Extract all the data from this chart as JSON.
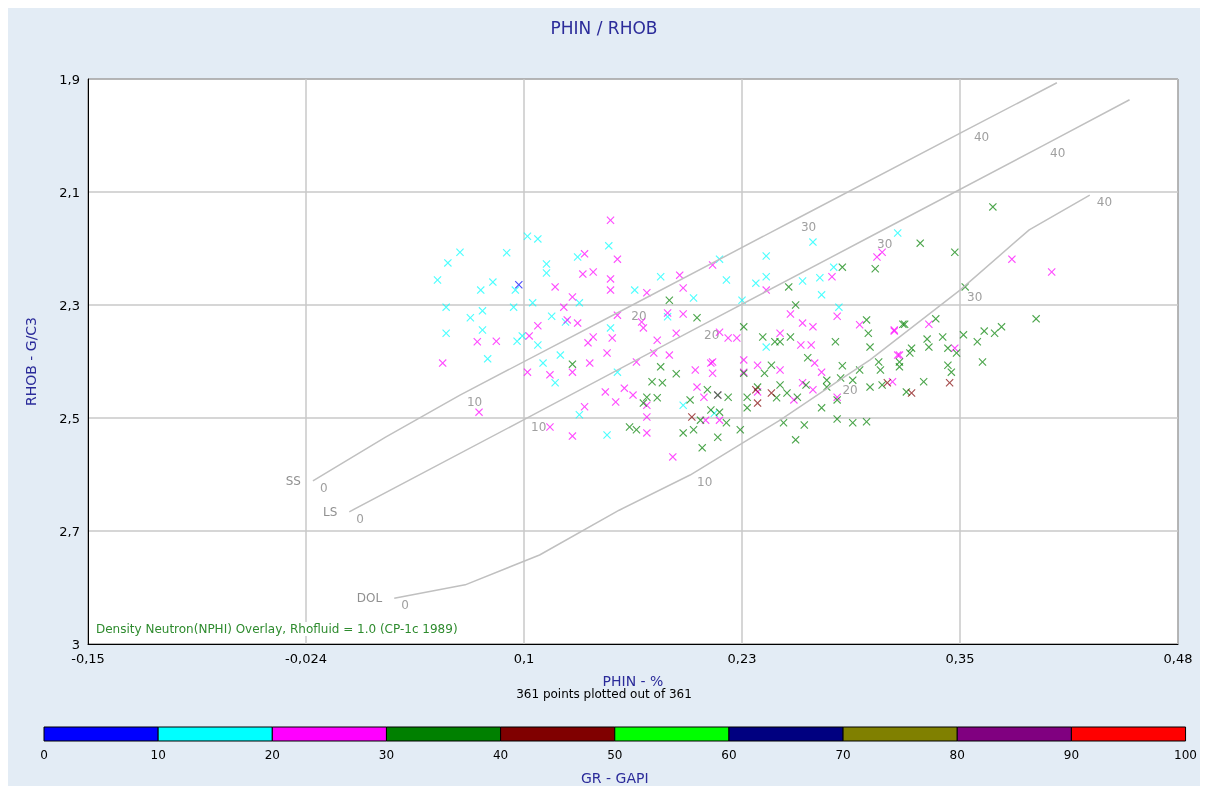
{
  "chart_data": {
    "type": "scatter",
    "title": "PHIN / RHOB",
    "xlabel": "PHIN - %",
    "ylabel": "RHOB - G/C3",
    "clabel": "GR - GAPI",
    "xlim": [
      -0.15,
      0.48
    ],
    "xticks": [
      {
        "value": -0.15,
        "label": "-0,15"
      },
      {
        "value": -0.024,
        "label": "-0,024"
      },
      {
        "value": 0.102,
        "label": "0,1"
      },
      {
        "value": 0.228,
        "label": "0,23"
      },
      {
        "value": 0.354,
        "label": "0,35"
      },
      {
        "value": 0.48,
        "label": "0,48"
      }
    ],
    "ylim": [
      2.96,
      1.9
    ],
    "yticks": [
      {
        "value": 1.9,
        "label": "1,9"
      },
      {
        "value": 2.112,
        "label": "2,1"
      },
      {
        "value": 2.324,
        "label": "2,3"
      },
      {
        "value": 2.536,
        "label": "2,5"
      },
      {
        "value": 2.748,
        "label": "2,7"
      },
      {
        "value": 2.96,
        "label": "3"
      }
    ],
    "grid": true,
    "marker": "cross",
    "clim": [
      0,
      100
    ],
    "cticks": [
      0,
      10,
      20,
      30,
      40,
      50,
      60,
      70,
      80,
      90,
      100
    ],
    "colors": [
      "#0000ff",
      "#00ffff",
      "#ff00ff",
      "#008000",
      "#800000",
      "#00ff00",
      "#000080",
      "#808000",
      "#800080",
      "#ff0000"
    ],
    "series": [
      {
        "x": [
          0.104,
          0.11,
          0.065,
          0.058,
          0.092,
          0.052,
          0.084,
          0.077,
          0.097,
          0.057,
          0.078,
          0.096,
          0.071,
          0.107,
          0.057,
          0.078,
          0.098,
          0.101,
          0.11,
          0.118,
          0.081,
          0.113,
          0.123,
          0.12,
          0.115,
          0.115,
          0.133,
          0.134,
          0.126,
          0.151,
          0.166,
          0.152,
          0.156,
          0.134,
          0.15,
          0.181,
          0.215,
          0.242,
          0.269,
          0.318,
          0.281,
          0.274,
          0.242,
          0.236,
          0.219,
          0.228,
          0.2,
          0.242,
          0.284,
          0.185,
          0.194,
          0.212,
          0.263,
          0.273
        ],
        "values": [
          2.195,
          2.2,
          2.225,
          2.245,
          2.226,
          2.277,
          2.281,
          2.296,
          2.296,
          2.328,
          2.335,
          2.328,
          2.348,
          2.32,
          2.377,
          2.371,
          2.392,
          2.382,
          2.399,
          2.345,
          2.425,
          2.433,
          2.418,
          2.47,
          2.247,
          2.264,
          2.234,
          2.32,
          2.356,
          2.213,
          2.296,
          2.367,
          2.45,
          2.53,
          2.568,
          2.271,
          2.238,
          2.232,
          2.206,
          2.189,
          2.253,
          2.305,
          2.271,
          2.283,
          2.277,
          2.315,
          2.311,
          2.403,
          2.328,
          2.346,
          2.512,
          2.527,
          2.279,
          2.273
        ],
        "cvalues": [
          15,
          15,
          15,
          15,
          15,
          15,
          15,
          15,
          15,
          15,
          15,
          15,
          15,
          15,
          15,
          15,
          15,
          15,
          15,
          15,
          15,
          15,
          15,
          15,
          15,
          15,
          15,
          15,
          15,
          15,
          15,
          15,
          15,
          15,
          15,
          15,
          15,
          15,
          15,
          15,
          15,
          15,
          15,
          15,
          15,
          15,
          15,
          15,
          15,
          15,
          15,
          15,
          15,
          15
        ]
      },
      {
        "x": [
          0.152,
          0.137,
          0.156,
          0.142,
          0.136,
          0.152,
          0.12,
          0.152,
          0.13,
          0.125,
          0.127,
          0.133,
          0.11,
          0.105,
          0.075,
          0.086,
          0.055,
          0.104,
          0.117,
          0.13,
          0.14,
          0.142,
          0.139,
          0.15,
          0.153,
          0.156,
          0.17,
          0.171,
          0.167,
          0.149,
          0.155,
          0.137,
          0.16,
          0.165,
          0.173,
          0.076,
          0.117,
          0.13,
          0.173,
          0.192,
          0.173,
          0.194,
          0.211,
          0.242,
          0.306,
          0.309,
          0.28,
          0.283,
          0.256,
          0.263,
          0.269,
          0.296,
          0.316,
          0.318,
          0.262,
          0.268,
          0.25,
          0.229,
          0.211,
          0.201,
          0.211,
          0.185,
          0.194,
          0.19,
          0.179,
          0.177,
          0.186,
          0.215,
          0.22,
          0.225,
          0.229,
          0.237,
          0.25,
          0.274,
          0.27,
          0.263,
          0.283,
          0.315,
          0.269,
          0.258,
          0.237,
          0.202,
          0.214,
          0.206,
          0.207,
          0.215,
          0.173,
          0.188,
          0.21,
          0.316,
          0.336,
          0.319,
          0.384,
          0.407,
          0.351
        ],
        "values": [
          2.165,
          2.228,
          2.238,
          2.262,
          2.266,
          2.275,
          2.29,
          2.296,
          2.309,
          2.328,
          2.352,
          2.358,
          2.363,
          2.382,
          2.393,
          2.392,
          2.433,
          2.45,
          2.455,
          2.45,
          2.433,
          2.384,
          2.395,
          2.414,
          2.386,
          2.343,
          2.356,
          2.367,
          2.431,
          2.487,
          2.506,
          2.515,
          2.48,
          2.493,
          2.534,
          2.525,
          2.553,
          2.57,
          2.564,
          2.268,
          2.301,
          2.292,
          2.249,
          2.296,
          2.234,
          2.225,
          2.271,
          2.345,
          2.341,
          2.358,
          2.365,
          2.361,
          2.371,
          2.418,
          2.399,
          2.399,
          2.377,
          2.427,
          2.431,
          2.446,
          2.452,
          2.339,
          2.341,
          2.377,
          2.39,
          2.414,
          2.418,
          2.375,
          2.386,
          2.386,
          2.45,
          2.437,
          2.446,
          2.45,
          2.433,
          2.47,
          2.497,
          2.468,
          2.483,
          2.502,
          2.487,
          2.478,
          2.493,
          2.497,
          2.54,
          2.54,
          2.512,
          2.609,
          2.433,
          2.373,
          2.36,
          2.418,
          2.238,
          2.262,
          2.405
        ],
        "cvalues": [
          25,
          25,
          25,
          25,
          25,
          25,
          25,
          25,
          25,
          25,
          25,
          25,
          25,
          25,
          25,
          25,
          25,
          25,
          25,
          25,
          25,
          25,
          25,
          25,
          25,
          25,
          25,
          25,
          25,
          25,
          25,
          25,
          25,
          25,
          25,
          25,
          25,
          25,
          25,
          25,
          25,
          25,
          25,
          25,
          25,
          25,
          25,
          25,
          25,
          25,
          25,
          25,
          25,
          25,
          25,
          25,
          25,
          25,
          25,
          25,
          25,
          25,
          25,
          25,
          25,
          25,
          25,
          25,
          25,
          25,
          25,
          25,
          25,
          25,
          25,
          25,
          25,
          25,
          25,
          25,
          25,
          25,
          25,
          25,
          25,
          25,
          25,
          25,
          25,
          25,
          25,
          25,
          25,
          25,
          25
        ]
      },
      {
        "x": [
          0.331,
          0.286,
          0.305,
          0.255,
          0.259,
          0.186,
          0.202,
          0.229,
          0.24,
          0.247,
          0.25,
          0.256,
          0.282,
          0.3,
          0.301,
          0.302,
          0.322,
          0.266,
          0.181,
          0.19,
          0.176,
          0.182,
          0.229,
          0.241,
          0.245,
          0.286,
          0.285,
          0.296,
          0.307,
          0.308,
          0.319,
          0.325,
          0.277,
          0.292,
          0.302,
          0.309,
          0.323,
          0.237,
          0.25,
          0.265,
          0.277,
          0.254,
          0.26,
          0.248,
          0.231,
          0.173,
          0.179,
          0.198,
          0.208,
          0.214,
          0.22,
          0.21,
          0.215,
          0.219,
          0.204,
          0.2,
          0.194,
          0.214,
          0.205,
          0.283,
          0.292,
          0.3,
          0.264,
          0.252,
          0.259,
          0.231,
          0.274,
          0.283,
          0.227,
          0.13,
          0.163,
          0.167,
          0.171,
          0.373,
          0.351,
          0.357,
          0.398,
          0.321,
          0.34,
          0.335,
          0.344,
          0.356,
          0.368,
          0.374,
          0.378,
          0.364,
          0.326,
          0.336,
          0.347,
          0.352,
          0.367,
          0.319,
          0.347,
          0.349,
          0.333
        ],
        "values": [
          2.208,
          2.253,
          2.256,
          2.29,
          2.324,
          2.315,
          2.348,
          2.365,
          2.384,
          2.393,
          2.393,
          2.384,
          2.393,
          2.352,
          2.377,
          2.403,
          2.36,
          2.423,
          2.44,
          2.453,
          2.468,
          2.47,
          2.452,
          2.452,
          2.437,
          2.438,
          2.461,
          2.446,
          2.431,
          2.446,
          2.431,
          2.414,
          2.465,
          2.465,
          2.478,
          2.474,
          2.487,
          2.478,
          2.474,
          2.474,
          2.478,
          2.489,
          2.497,
          2.498,
          2.497,
          2.497,
          2.498,
          2.502,
          2.483,
          2.493,
          2.497,
          2.521,
          2.525,
          2.545,
          2.54,
          2.558,
          2.564,
          2.572,
          2.592,
          2.538,
          2.545,
          2.543,
          2.549,
          2.545,
          2.577,
          2.517,
          2.517,
          2.502,
          2.558,
          2.435,
          2.553,
          2.558,
          2.508,
          2.14,
          2.225,
          2.29,
          2.35,
          2.36,
          2.35,
          2.388,
          2.384,
          2.38,
          2.373,
          2.377,
          2.365,
          2.393,
          2.405,
          2.403,
          2.405,
          2.414,
          2.431,
          2.44,
          2.437,
          2.45,
          2.468
        ],
        "cvalues": [
          35,
          35,
          35,
          35,
          35,
          35,
          35,
          35,
          35,
          35,
          35,
          35,
          35,
          35,
          35,
          35,
          35,
          35,
          35,
          35,
          35,
          35,
          35,
          35,
          35,
          35,
          35,
          35,
          35,
          35,
          35,
          35,
          35,
          35,
          35,
          35,
          35,
          35,
          35,
          35,
          35,
          35,
          35,
          35,
          35,
          35,
          35,
          35,
          35,
          35,
          35,
          35,
          35,
          35,
          35,
          35,
          35,
          35,
          35,
          35,
          35,
          35,
          35,
          35,
          35,
          35,
          35,
          35,
          35,
          35,
          35,
          35,
          35,
          35,
          35,
          35,
          35,
          35,
          35,
          35,
          35,
          35,
          35,
          35,
          35,
          35,
          35,
          35,
          35,
          35,
          35,
          35,
          35,
          35,
          35
        ]
      },
      {
        "x": [
          0.236,
          0.245,
          0.237,
          0.199,
          0.312,
          0.326,
          0.348
        ],
        "values": [
          2.483,
          2.489,
          2.508,
          2.534,
          2.47,
          2.489,
          2.47
        ],
        "cvalues": [
          45,
          45,
          45,
          45,
          45,
          45,
          45
        ]
      },
      {
        "x": [
          0.099
        ],
        "values": [
          2.286
        ],
        "cvalues": [
          5
        ]
      },
      {
        "type": "line",
        "name": "SS",
        "color": "#c0c0c0",
        "marker": "none",
        "x": [
          -0.02,
          0.022,
          0.065,
          0.16,
          0.258,
          0.358,
          0.41
        ],
        "values": [
          2.654,
          2.572,
          2.493,
          2.332,
          2.165,
          1.995,
          1.907
        ]
      },
      {
        "type": "line",
        "name": "LS",
        "color": "#c0c0c0",
        "marker": "none",
        "x": [
          0.001,
          0.102,
          0.202,
          0.302,
          0.402,
          0.452
        ],
        "values": [
          2.712,
          2.539,
          2.367,
          2.196,
          2.025,
          1.939
        ]
      },
      {
        "type": "line",
        "name": "DOL",
        "color": "#c0c0c0",
        "marker": "none",
        "x": [
          0.027,
          0.068,
          0.111,
          0.157,
          0.198,
          0.25,
          0.282,
          0.302,
          0.354,
          0.394,
          0.429
        ],
        "values": [
          2.874,
          2.849,
          2.793,
          2.709,
          2.643,
          2.54,
          2.47,
          2.427,
          2.296,
          2.183,
          2.118
        ]
      }
    ],
    "annotations": [
      "Density Neutron(NPHI) Overlay, Rhofluid = 1.0 (CP-1c 1989)",
      "361 points plotted out of 361",
      {
        "text": "0",
        "x": -0.02,
        "y": 2.654
      },
      {
        "text": "10",
        "x": 0.065,
        "y": 2.493
      },
      {
        "text": "20",
        "x": 0.16,
        "y": 2.332
      },
      {
        "text": "30",
        "x": 0.258,
        "y": 2.165
      },
      {
        "text": "40",
        "x": 0.358,
        "y": 1.995
      },
      {
        "text": "0",
        "x": 0.001,
        "y": 2.712
      },
      {
        "text": "10",
        "x": 0.102,
        "y": 2.539
      },
      {
        "text": "20",
        "x": 0.202,
        "y": 2.367
      },
      {
        "text": "30",
        "x": 0.302,
        "y": 2.196
      },
      {
        "text": "40",
        "x": 0.402,
        "y": 2.025
      },
      {
        "text": "0",
        "x": 0.027,
        "y": 2.874
      },
      {
        "text": "10",
        "x": 0.198,
        "y": 2.643
      },
      {
        "text": "20",
        "x": 0.282,
        "y": 2.47
      },
      {
        "text": "30",
        "x": 0.354,
        "y": 2.296
      },
      {
        "text": "40",
        "x": 0.429,
        "y": 2.118
      }
    ]
  }
}
